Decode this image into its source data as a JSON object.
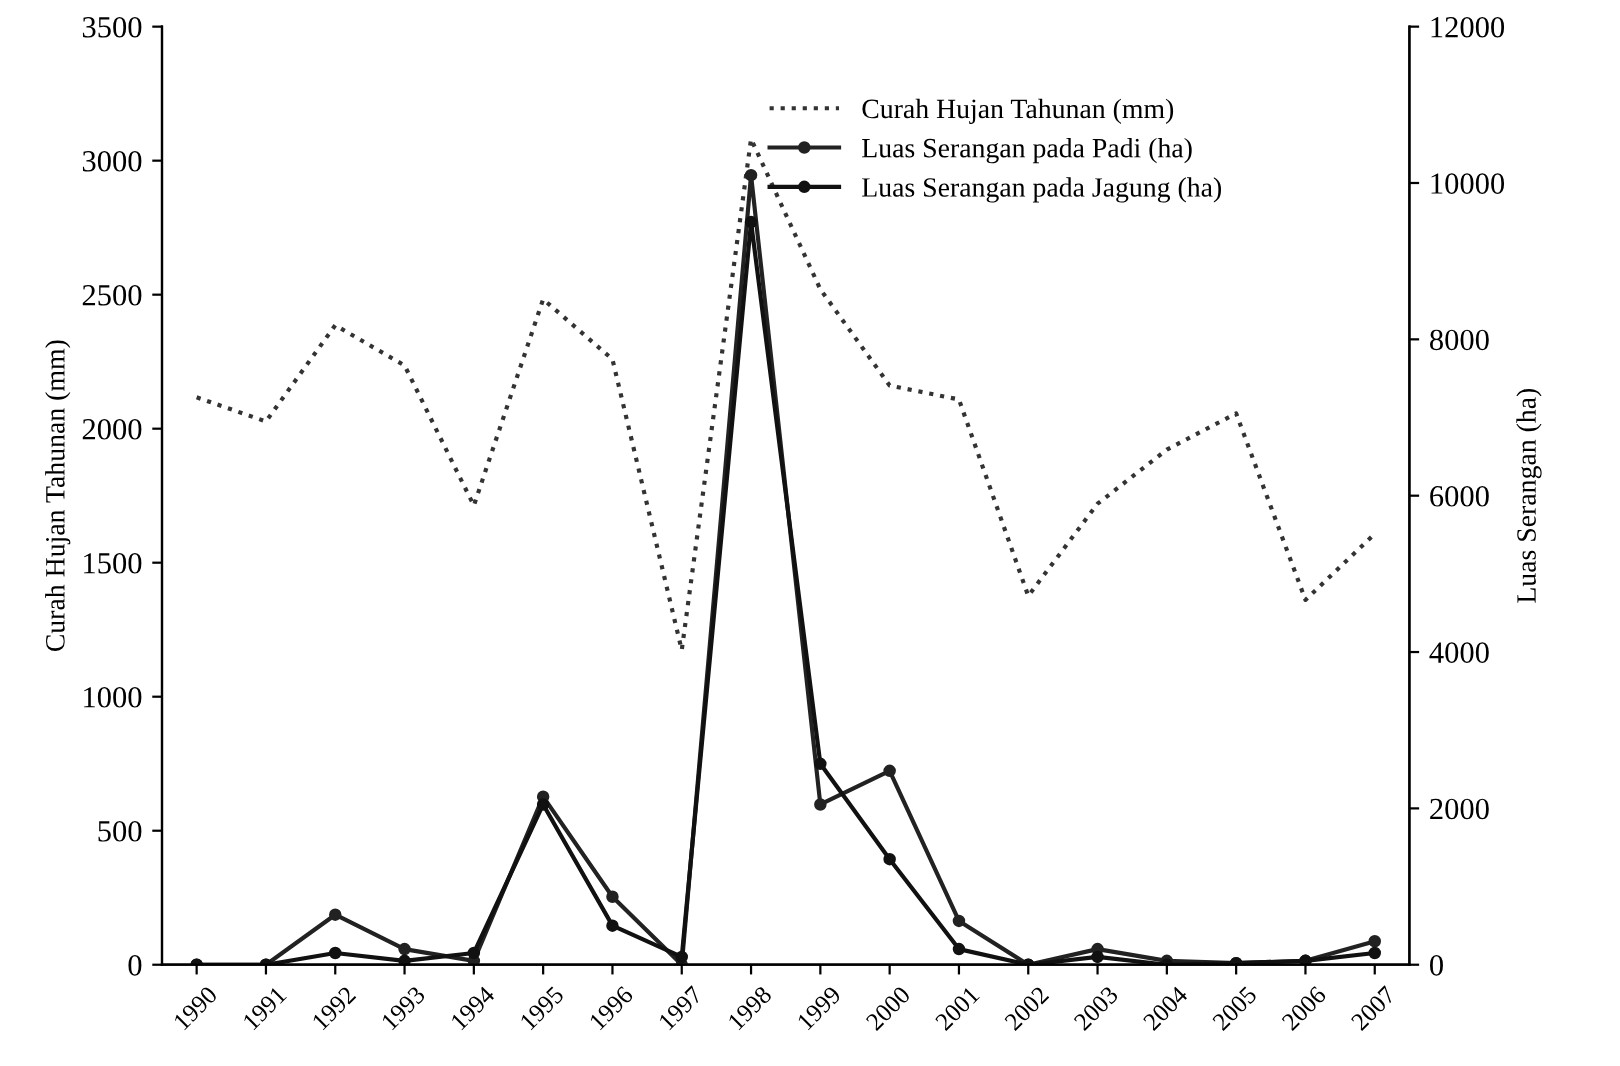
{
  "chart_data": {
    "type": "line",
    "categories": [
      "1990",
      "1991",
      "1992",
      "1993",
      "1994",
      "1995",
      "1996",
      "1997",
      "1998",
      "1999",
      "2000",
      "2001",
      "2002",
      "2003",
      "2004",
      "2005",
      "2006",
      "2007"
    ],
    "ylabel": "Curah Hujan Tahunan (mm)",
    "y2label": "Luas Serangan (ha)",
    "ylim": [
      0,
      3500
    ],
    "yticks": [
      0,
      500,
      1000,
      1500,
      2000,
      2500,
      3000,
      3500
    ],
    "y2lim": [
      0,
      12000
    ],
    "y2ticks": [
      0,
      2000,
      4000,
      6000,
      8000,
      10000,
      12000
    ],
    "grid": false,
    "legend": "top right",
    "series": [
      {
        "name": "Curah Hujan Tahunan (mm)",
        "color": "#333333",
        "line_style": "dotted",
        "marker": "none",
        "values": [
          2117,
          2027,
          2386,
          2236,
          1713,
          2483,
          2259,
          1174,
          3081,
          2520,
          2161,
          2109,
          1376,
          1720,
          1922,
          2057,
          1361,
          1608
        ]
      },
      {
        "name": "Luas Serangan pada Padi (ha)",
        "color": "#222222",
        "axis": "y2",
        "line_style": "solid",
        "marker": "circle",
        "values": [
          0,
          0,
          640,
          200,
          50,
          2150,
          870,
          0,
          10100,
          2050,
          2480,
          560,
          0,
          200,
          50,
          20,
          50,
          300
        ]
      },
      {
        "name": "Luas Serangan pada Jagung (ha)",
        "color": "#111111",
        "axis": "y2",
        "line_style": "solid",
        "marker": "circle",
        "values": [
          0,
          0,
          150,
          50,
          150,
          2050,
          500,
          100,
          9500,
          2570,
          1350,
          200,
          0,
          100,
          0,
          20,
          50,
          150
        ]
      }
    ]
  }
}
